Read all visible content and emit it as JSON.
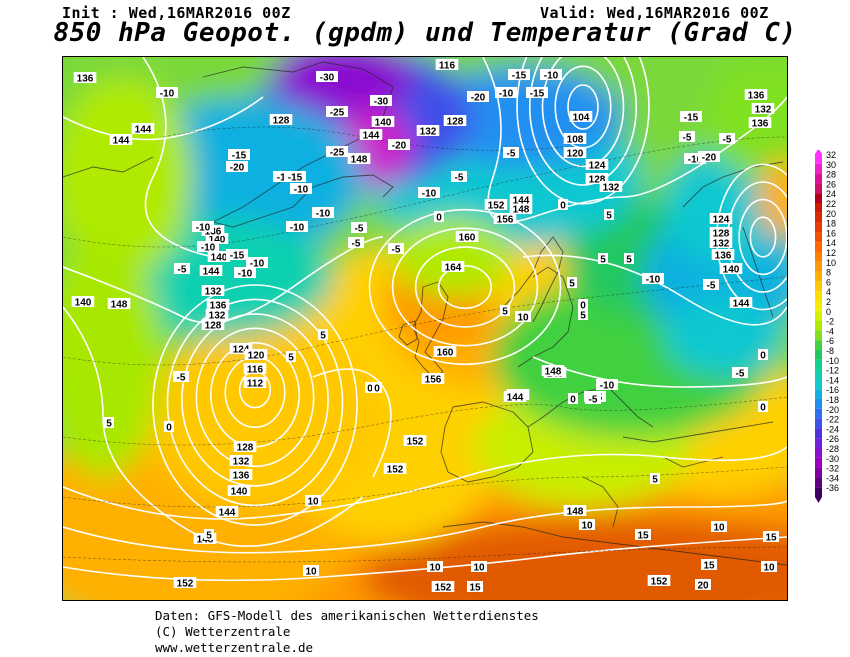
{
  "header": {
    "init": "Init : Wed,16MAR2016 00Z",
    "valid": "Valid: Wed,16MAR2016 00Z",
    "title": "850 hPa Geopot. (gpdm) und Temperatur (Grad C)"
  },
  "footer": {
    "line1": "Daten: GFS-Modell des amerikanischen Wetterdienstes",
    "line2": "(C) Wetterzentrale",
    "line3": "www.wetterzentrale.de"
  },
  "colorbar": {
    "labels": [
      "32",
      "30",
      "28",
      "26",
      "24",
      "22",
      "20",
      "18",
      "16",
      "14",
      "12",
      "10",
      "8",
      "6",
      "4",
      "2",
      "0",
      "-2",
      "-4",
      "-6",
      "-8",
      "-10",
      "-12",
      "-14",
      "-16",
      "-18",
      "-20",
      "-22",
      "-24",
      "-26",
      "-28",
      "-30",
      "-32",
      "-34",
      "-36"
    ],
    "colors": [
      "#ff33ff",
      "#ee22cc",
      "#dd1199",
      "#cc1166",
      "#b3001a",
      "#cc1a00",
      "#d92a00",
      "#e63c00",
      "#f25000",
      "#ff6600",
      "#ff8000",
      "#ff9900",
      "#ffb000",
      "#ffc800",
      "#ffdd00",
      "#f5ee00",
      "#d8f000",
      "#b0ea00",
      "#80e020",
      "#40d040",
      "#20c860",
      "#10d08c",
      "#10d0b0",
      "#10c8d0",
      "#10b0e0",
      "#2090f0",
      "#3070f0",
      "#4050e8",
      "#5030e0",
      "#7020d8",
      "#8a10d0",
      "#9a00c0",
      "#8000a0",
      "#600080",
      "#400060"
    ]
  },
  "map": {
    "height_labels": [
      {
        "t": "136"
      },
      {
        "t": "144"
      },
      {
        "t": "128"
      },
      {
        "t": "140"
      },
      {
        "t": "144"
      },
      {
        "t": "148"
      },
      {
        "t": "132"
      },
      {
        "t": "128"
      },
      {
        "t": "116"
      },
      {
        "t": "104"
      },
      {
        "t": "108"
      },
      {
        "t": "120"
      },
      {
        "t": "124"
      },
      {
        "t": "128"
      },
      {
        "t": "132"
      },
      {
        "t": "136"
      },
      {
        "t": "132"
      },
      {
        "t": "136"
      },
      {
        "t": "124"
      },
      {
        "t": "128"
      },
      {
        "t": "132"
      },
      {
        "t": "136"
      },
      {
        "t": "140"
      },
      {
        "t": "144"
      },
      {
        "t": "144"
      },
      {
        "t": "132"
      },
      {
        "t": "136"
      },
      {
        "t": "140"
      },
      {
        "t": "140"
      },
      {
        "t": "136"
      },
      {
        "t": "132"
      },
      {
        "t": "128"
      },
      {
        "t": "124"
      },
      {
        "t": "120"
      },
      {
        "t": "116"
      },
      {
        "t": "112"
      },
      {
        "t": "152"
      },
      {
        "t": "156"
      },
      {
        "t": "160"
      },
      {
        "t": "164"
      },
      {
        "t": "160"
      },
      {
        "t": "156"
      },
      {
        "t": "148"
      },
      {
        "t": "144"
      },
      {
        "t": "144"
      },
      {
        "t": "148"
      },
      {
        "t": "152"
      },
      {
        "t": "152"
      },
      {
        "t": "128"
      },
      {
        "t": "132"
      },
      {
        "t": "136"
      },
      {
        "t": "140"
      },
      {
        "t": "144"
      },
      {
        "t": "148"
      },
      {
        "t": "152"
      },
      {
        "t": "152"
      },
      {
        "t": "148"
      },
      {
        "t": "152"
      },
      {
        "t": "144"
      },
      {
        "t": "148"
      },
      {
        "t": "140"
      },
      {
        "t": "144"
      },
      {
        "t": "148"
      }
    ],
    "temp_labels": [
      {
        "t": "-10"
      },
      {
        "t": "-15"
      },
      {
        "t": "-20"
      },
      {
        "t": "-25"
      },
      {
        "t": "-30"
      },
      {
        "t": "-30"
      },
      {
        "t": "-25"
      },
      {
        "t": "-20"
      },
      {
        "t": "-15"
      },
      {
        "t": "-10"
      },
      {
        "t": "-15"
      },
      {
        "t": "-20"
      },
      {
        "t": "-10"
      },
      {
        "t": "-15"
      },
      {
        "t": "-10"
      },
      {
        "t": "-10"
      },
      {
        "t": "-15"
      },
      {
        "t": "-10"
      },
      {
        "t": "-5"
      },
      {
        "t": "-10"
      },
      {
        "t": "-10"
      },
      {
        "t": "-5"
      },
      {
        "t": "-5"
      },
      {
        "t": "-10"
      },
      {
        "t": "-10"
      },
      {
        "t": "-5"
      },
      {
        "t": "-10"
      },
      {
        "t": "-5"
      },
      {
        "t": "-5"
      },
      {
        "t": "-10"
      },
      {
        "t": "-5"
      },
      {
        "t": "0"
      },
      {
        "t": "0"
      },
      {
        "t": "5"
      },
      {
        "t": "5"
      },
      {
        "t": "5"
      },
      {
        "t": "0"
      },
      {
        "t": "5"
      },
      {
        "t": "10"
      },
      {
        "t": "5"
      },
      {
        "t": "0"
      },
      {
        "t": "5"
      },
      {
        "t": "5"
      },
      {
        "t": "0"
      },
      {
        "t": "-5"
      },
      {
        "t": "-5"
      },
      {
        "t": "-10"
      },
      {
        "t": "5"
      },
      {
        "t": "0"
      },
      {
        "t": "5"
      },
      {
        "t": "10"
      },
      {
        "t": "10"
      },
      {
        "t": "15"
      },
      {
        "t": "10"
      },
      {
        "t": "10"
      },
      {
        "t": "20"
      },
      {
        "t": "15"
      },
      {
        "t": "10"
      },
      {
        "t": "15"
      },
      {
        "t": "15"
      },
      {
        "t": "5"
      },
      {
        "t": "0"
      },
      {
        "t": "-5"
      },
      {
        "t": "0"
      },
      {
        "t": "-5"
      },
      {
        "t": "-10"
      },
      {
        "t": "-15"
      },
      {
        "t": "-20"
      },
      {
        "t": "-10"
      },
      {
        "t": "-15"
      },
      {
        "t": "-5"
      },
      {
        "t": "0"
      },
      {
        "t": "10"
      },
      {
        "t": "5"
      },
      {
        "t": "5"
      },
      {
        "t": "10"
      }
    ]
  }
}
